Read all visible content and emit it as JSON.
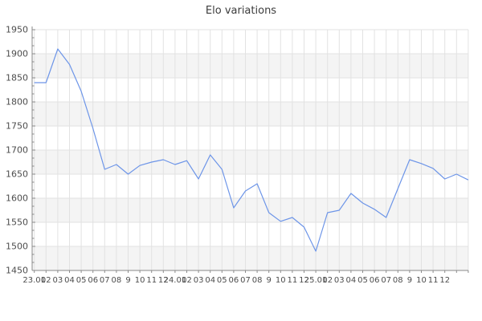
{
  "title": "Elo variations",
  "chart_data": {
    "type": "line",
    "title": "Elo variations",
    "xlabel": "",
    "ylabel": "",
    "ylim": [
      1450,
      1950
    ],
    "y_ticks": [
      1450,
      1500,
      1550,
      1600,
      1650,
      1700,
      1750,
      1800,
      1850,
      1900,
      1950
    ],
    "minor_y_ticks_per_interval": 2,
    "grid": true,
    "legend_position": "none",
    "x_labels": [
      "23.01",
      "02",
      "03",
      "04",
      "05",
      "06",
      "07",
      "08",
      "9",
      "10",
      "11",
      "12",
      "24.01",
      "02",
      "03",
      "04",
      "05",
      "06",
      "07",
      "08",
      "9",
      "10",
      "11",
      "12",
      "25.01",
      "02",
      "03",
      "04",
      "05",
      "06",
      "07",
      "08",
      "9",
      "10",
      "11",
      "12",
      "",
      ""
    ],
    "series": [
      {
        "name": "Elo",
        "values": [
          1840,
          1840,
          1910,
          1878,
          1822,
          1745,
          1660,
          1670,
          1650,
          1668,
          1675,
          1680,
          1670,
          1678,
          1640,
          1690,
          1660,
          1580,
          1615,
          1630,
          1570,
          1552,
          1560,
          1540,
          1490,
          1570,
          1575,
          1610,
          1590,
          1577,
          1560,
          1620,
          1680,
          1672,
          1662,
          1640,
          1650,
          1638
        ]
      }
    ],
    "colors": {
      "line": "#6d95e8",
      "band_gray": "#f4f4f4",
      "band_white": "#ffffff",
      "gridline": "#e2e2e2",
      "axis": "#8a8a8a",
      "tick_label": "#4d4d4d",
      "title": "#3c3c3c"
    }
  }
}
